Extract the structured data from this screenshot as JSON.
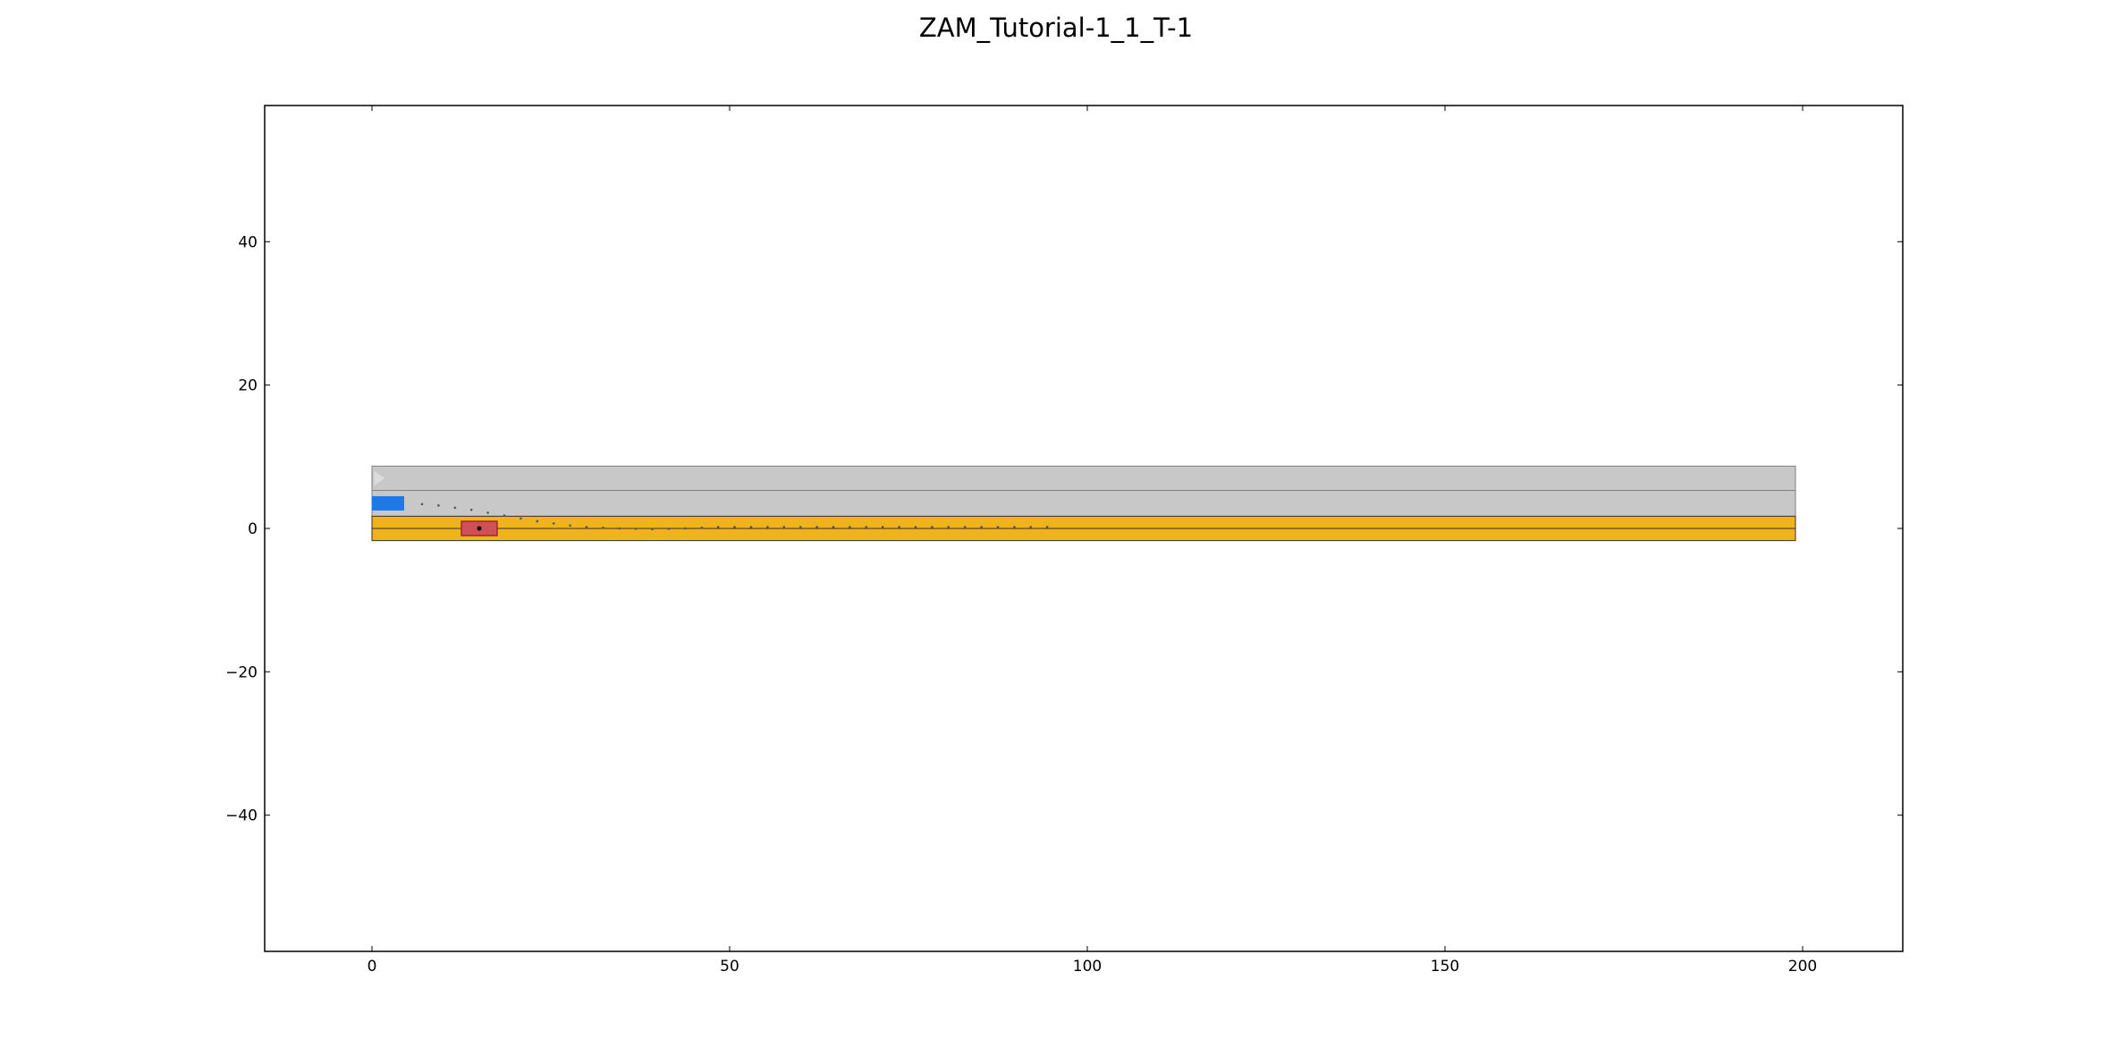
{
  "chart_data": {
    "type": "scatter",
    "title": "ZAM_Tutorial-1_1_T-1",
    "xlabel": "",
    "ylabel": "",
    "xlim": [
      -15,
      214
    ],
    "ylim": [
      -59,
      59
    ],
    "xticks": [
      {
        "value": 0,
        "label": "0"
      },
      {
        "value": 50,
        "label": "50"
      },
      {
        "value": 100,
        "label": "100"
      },
      {
        "value": 150,
        "label": "150"
      },
      {
        "value": 200,
        "label": "200"
      }
    ],
    "yticks": [
      {
        "value": 40,
        "label": "40"
      },
      {
        "value": 20,
        "label": "20"
      },
      {
        "value": 0,
        "label": "0"
      },
      {
        "value": -20,
        "label": "−20"
      },
      {
        "value": -40,
        "label": "−40"
      }
    ],
    "grid": false,
    "lanes": [
      {
        "name": "upper-lane",
        "x": [
          0,
          199
        ],
        "y": [
          5.3,
          8.7
        ],
        "fill": "#c8c8c8",
        "border": "#808080"
      },
      {
        "name": "middle-lane",
        "x": [
          0,
          199
        ],
        "y": [
          1.7,
          5.3
        ],
        "fill": "#c8c8c8",
        "border": "#808080"
      },
      {
        "name": "goal-lane-top",
        "x": [
          0,
          199
        ],
        "y": [
          0,
          1.7
        ],
        "fill": "#f1b31c",
        "border": "#333333"
      },
      {
        "name": "goal-lane-bottom",
        "x": [
          0,
          199
        ],
        "y": [
          -1.7,
          0
        ],
        "fill": "#f1b31c",
        "border": "#333333"
      }
    ],
    "obstacle": {
      "name": "ego-vehicle",
      "x": [
        0,
        4.5
      ],
      "y": [
        2.5,
        4.5
      ],
      "fill": "#1e78e6"
    },
    "goal_vehicle": {
      "name": "target-vehicle",
      "x": [
        12.5,
        17.5
      ],
      "y": [
        -1.0,
        1.0
      ],
      "fill": "#d0505a",
      "border": "#8b1a1a",
      "center": [
        15,
        0
      ]
    },
    "start_marker": {
      "x": 0.8,
      "y": 7,
      "color": "#dcdcdc"
    },
    "trajectory_points": {
      "color": "#555555",
      "x": [
        7,
        9.3,
        11.6,
        13.9,
        16.2,
        18.5,
        20.8,
        23.1,
        25.4,
        27.7,
        30,
        32.3,
        34.6,
        36.9,
        39.2,
        41.5,
        43.8,
        46.1,
        48.4,
        50.7,
        53,
        55.3,
        57.6,
        59.9,
        62.2,
        64.5,
        66.8,
        69.1,
        71.4,
        73.7,
        76,
        78.3,
        80.6,
        82.9,
        85.2,
        87.5,
        89.8,
        92.1,
        94.4
      ],
      "y": [
        3.4,
        3.2,
        2.9,
        2.6,
        2.2,
        1.8,
        1.4,
        1.0,
        0.7,
        0.4,
        0.2,
        0.1,
        0.0,
        -0.05,
        -0.1,
        -0.05,
        0.0,
        0.1,
        0.2,
        0.2,
        0.2,
        0.2,
        0.2,
        0.2,
        0.2,
        0.2,
        0.2,
        0.2,
        0.2,
        0.2,
        0.2,
        0.2,
        0.2,
        0.2,
        0.2,
        0.2,
        0.2,
        0.2,
        0.2
      ]
    }
  }
}
